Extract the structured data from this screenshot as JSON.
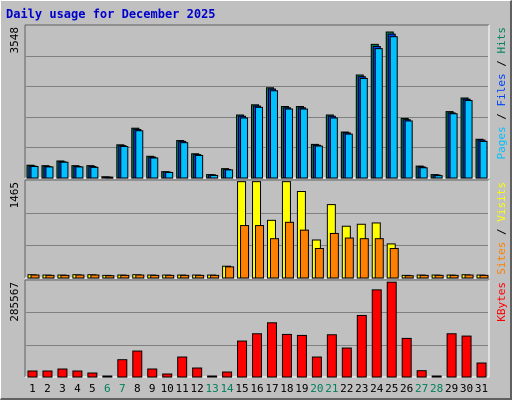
{
  "title": "Daily usage for December 2025",
  "colors": {
    "background": "#c0c0c0",
    "title": "#0000cc",
    "hits": "#00805c",
    "files": "#0040ff",
    "pages": "#00c0ff",
    "visits": "#ffff00",
    "sites": "#ff8000",
    "kbytes": "#ff0000",
    "weekend_label": "#00805c",
    "weekday_label": "#000000"
  },
  "chart_data": [
    {
      "type": "bar",
      "panel": "top",
      "max_label": "3548",
      "ylim": [
        0,
        3548
      ],
      "legend": [
        {
          "label": "Pages",
          "color": "#00c0ff"
        },
        {
          "label": " / ",
          "color": "#000000"
        },
        {
          "label": "Files",
          "color": "#0040ff"
        },
        {
          "label": " / ",
          "color": "#000000"
        },
        {
          "label": "Hits",
          "color": "#00805c"
        }
      ],
      "categories": [
        "1",
        "2",
        "3",
        "4",
        "5",
        "6",
        "7",
        "8",
        "9",
        "10",
        "11",
        "12",
        "13",
        "14",
        "15",
        "16",
        "17",
        "18",
        "19",
        "20",
        "21",
        "22",
        "23",
        "24",
        "25",
        "26",
        "27",
        "28",
        "29",
        "30",
        "31"
      ],
      "series": [
        {
          "name": "Hits",
          "values": [
            300,
            290,
            400,
            290,
            290,
            30,
            780,
            1170,
            510,
            150,
            880,
            570,
            80,
            220,
            1480,
            1720,
            2120,
            1680,
            1680,
            790,
            1480,
            1080,
            2420,
            3140,
            3430,
            1400,
            280,
            80,
            1560,
            1880,
            910
          ]
        },
        {
          "name": "Files",
          "values": [
            280,
            270,
            380,
            270,
            270,
            25,
            760,
            1140,
            490,
            140,
            860,
            550,
            75,
            200,
            1450,
            1690,
            2090,
            1650,
            1650,
            770,
            1450,
            1060,
            2380,
            3090,
            3380,
            1370,
            260,
            70,
            1530,
            1850,
            890
          ]
        },
        {
          "name": "Pages",
          "values": [
            270,
            260,
            370,
            260,
            250,
            20,
            740,
            1110,
            470,
            130,
            830,
            530,
            60,
            190,
            1410,
            1660,
            2050,
            1620,
            1620,
            750,
            1410,
            1030,
            2340,
            3040,
            3320,
            1340,
            240,
            55,
            1510,
            1820,
            860
          ]
        }
      ]
    },
    {
      "type": "bar",
      "panel": "middle",
      "max_label": "1465",
      "ylim": [
        0,
        1465
      ],
      "legend": [
        {
          "label": "Sites",
          "color": "#ff8000"
        },
        {
          "label": " / ",
          "color": "#000000"
        },
        {
          "label": "Visits",
          "color": "#ffff00"
        }
      ],
      "categories": [
        "1",
        "2",
        "3",
        "4",
        "5",
        "6",
        "7",
        "8",
        "9",
        "10",
        "11",
        "12",
        "13",
        "14",
        "15",
        "16",
        "17",
        "18",
        "19",
        "20",
        "21",
        "22",
        "23",
        "24",
        "25",
        "26",
        "27",
        "28",
        "29",
        "30",
        "31"
      ],
      "series": [
        {
          "name": "Visits",
          "values": [
            50,
            45,
            45,
            50,
            50,
            40,
            45,
            50,
            45,
            45,
            45,
            45,
            45,
            180,
            1470,
            1470,
            880,
            1470,
            1320,
            580,
            1120,
            790,
            820,
            840,
            520,
            40,
            45,
            45,
            45,
            50,
            45
          ]
        },
        {
          "name": "Sites",
          "values": [
            45,
            40,
            40,
            45,
            45,
            35,
            40,
            45,
            40,
            40,
            40,
            40,
            40,
            170,
            800,
            800,
            600,
            850,
            730,
            450,
            680,
            610,
            600,
            600,
            450,
            35,
            40,
            40,
            40,
            45,
            40
          ]
        }
      ]
    },
    {
      "type": "bar",
      "panel": "bottom",
      "max_label": "285567",
      "ylim": [
        0,
        285567
      ],
      "legend": [
        {
          "label": "KBytes",
          "color": "#ff0000"
        }
      ],
      "categories": [
        "1",
        "2",
        "3",
        "4",
        "5",
        "6",
        "7",
        "8",
        "9",
        "10",
        "11",
        "12",
        "13",
        "14",
        "15",
        "16",
        "17",
        "18",
        "19",
        "20",
        "21",
        "22",
        "23",
        "24",
        "25",
        "26",
        "27",
        "28",
        "29",
        "30",
        "31"
      ],
      "series": [
        {
          "name": "KBytes",
          "values": [
            18000,
            18000,
            24000,
            18000,
            12000,
            3000,
            52000,
            78000,
            24000,
            9000,
            60000,
            27000,
            3000,
            15000,
            108000,
            130000,
            163000,
            128000,
            125000,
            60000,
            127000,
            87000,
            185000,
            262000,
            285000,
            116000,
            19000,
            3000,
            130000,
            123000,
            42000
          ]
        }
      ]
    }
  ],
  "x_labels": [
    {
      "text": "1",
      "weekend": false
    },
    {
      "text": "2",
      "weekend": false
    },
    {
      "text": "3",
      "weekend": false
    },
    {
      "text": "4",
      "weekend": false
    },
    {
      "text": "5",
      "weekend": false
    },
    {
      "text": "6",
      "weekend": true
    },
    {
      "text": "7",
      "weekend": true
    },
    {
      "text": "8",
      "weekend": false
    },
    {
      "text": "9",
      "weekend": false
    },
    {
      "text": "10",
      "weekend": false
    },
    {
      "text": "11",
      "weekend": false
    },
    {
      "text": "12",
      "weekend": false
    },
    {
      "text": "13",
      "weekend": true
    },
    {
      "text": "14",
      "weekend": true
    },
    {
      "text": "15",
      "weekend": false
    },
    {
      "text": "16",
      "weekend": false
    },
    {
      "text": "17",
      "weekend": false
    },
    {
      "text": "18",
      "weekend": false
    },
    {
      "text": "19",
      "weekend": false
    },
    {
      "text": "20",
      "weekend": true
    },
    {
      "text": "21",
      "weekend": true
    },
    {
      "text": "22",
      "weekend": false
    },
    {
      "text": "23",
      "weekend": false
    },
    {
      "text": "24",
      "weekend": false
    },
    {
      "text": "25",
      "weekend": false
    },
    {
      "text": "26",
      "weekend": false
    },
    {
      "text": "27",
      "weekend": true
    },
    {
      "text": "28",
      "weekend": true
    },
    {
      "text": "29",
      "weekend": false
    },
    {
      "text": "30",
      "weekend": false
    },
    {
      "text": "31",
      "weekend": false
    }
  ]
}
